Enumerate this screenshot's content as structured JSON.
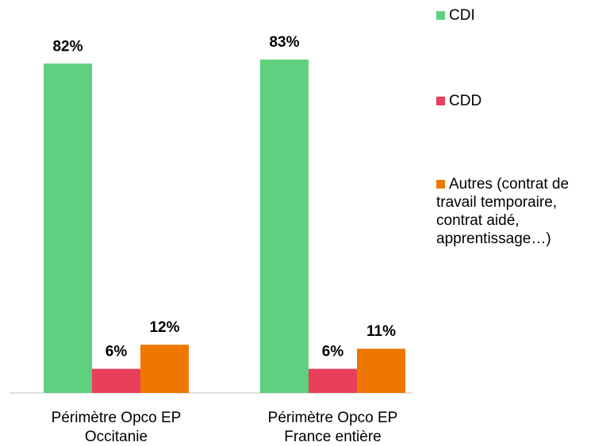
{
  "chart_data": {
    "type": "bar",
    "categories": [
      [
        "Périmètre Opco EP",
        "Occitanie"
      ],
      [
        "Périmètre Opco EP",
        "France entière"
      ]
    ],
    "series": [
      {
        "name": "CDI",
        "color": "#5fd07f",
        "values": [
          82,
          83
        ],
        "value_labels": [
          "82%",
          "83%"
        ]
      },
      {
        "name": "CDD",
        "color": "#e8405a",
        "values": [
          6,
          6
        ],
        "value_labels": [
          "6%",
          "6%"
        ]
      },
      {
        "name": "Autres (contrat de travail temporaire, contrat aidé, apprentissage…)",
        "color": "#ee7700",
        "values": [
          12,
          11
        ],
        "value_labels": [
          "12%",
          "11%"
        ]
      }
    ],
    "legend": "right"
  }
}
